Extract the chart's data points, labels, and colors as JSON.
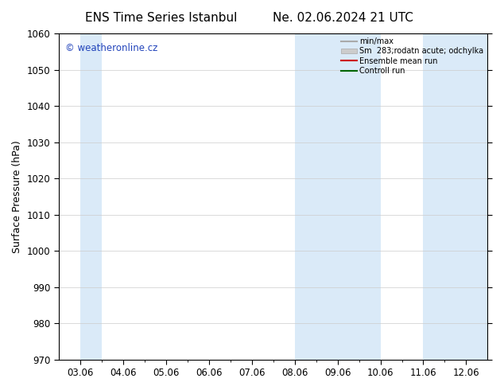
{
  "title_left": "ENS Time Series Istanbul",
  "title_right": "Ne. 02.06.2024 21 UTC",
  "ylabel": "Surface Pressure (hPa)",
  "ylim": [
    970,
    1060
  ],
  "yticks": [
    970,
    980,
    990,
    1000,
    1010,
    1020,
    1030,
    1040,
    1050,
    1060
  ],
  "xtick_labels": [
    "03.06",
    "04.06",
    "05.06",
    "06.06",
    "07.06",
    "08.06",
    "09.06",
    "10.06",
    "11.06",
    "12.06"
  ],
  "watermark": "© weatheronline.cz",
  "watermark_color": "#2244bb",
  "background_color": "#ffffff",
  "plot_bg_color": "#ffffff",
  "shaded_bands": [
    {
      "xstart": 0.0,
      "xend": 0.5,
      "color": "#daeaf8"
    },
    {
      "xstart": 5.0,
      "xend": 7.0,
      "color": "#daeaf8"
    },
    {
      "xstart": 8.0,
      "xend": 9.5,
      "color": "#daeaf8"
    }
  ],
  "legend_entries": [
    {
      "label": "min/max",
      "color": "#aaaaaa",
      "type": "line",
      "linewidth": 1.5
    },
    {
      "label": "Sm  283;rodatn acute; odchylka",
      "color": "#cccccc",
      "type": "patch"
    },
    {
      "label": "Ensemble mean run",
      "color": "#cc0000",
      "type": "line",
      "linewidth": 1.5
    },
    {
      "label": "Controll run",
      "color": "#006600",
      "type": "line",
      "linewidth": 1.5
    }
  ],
  "title_fontsize": 11,
  "tick_fontsize": 8.5,
  "ylabel_fontsize": 9,
  "grid_color": "#cccccc",
  "spine_color": "#000000",
  "fig_width": 6.34,
  "fig_height": 4.9,
  "dpi": 100
}
